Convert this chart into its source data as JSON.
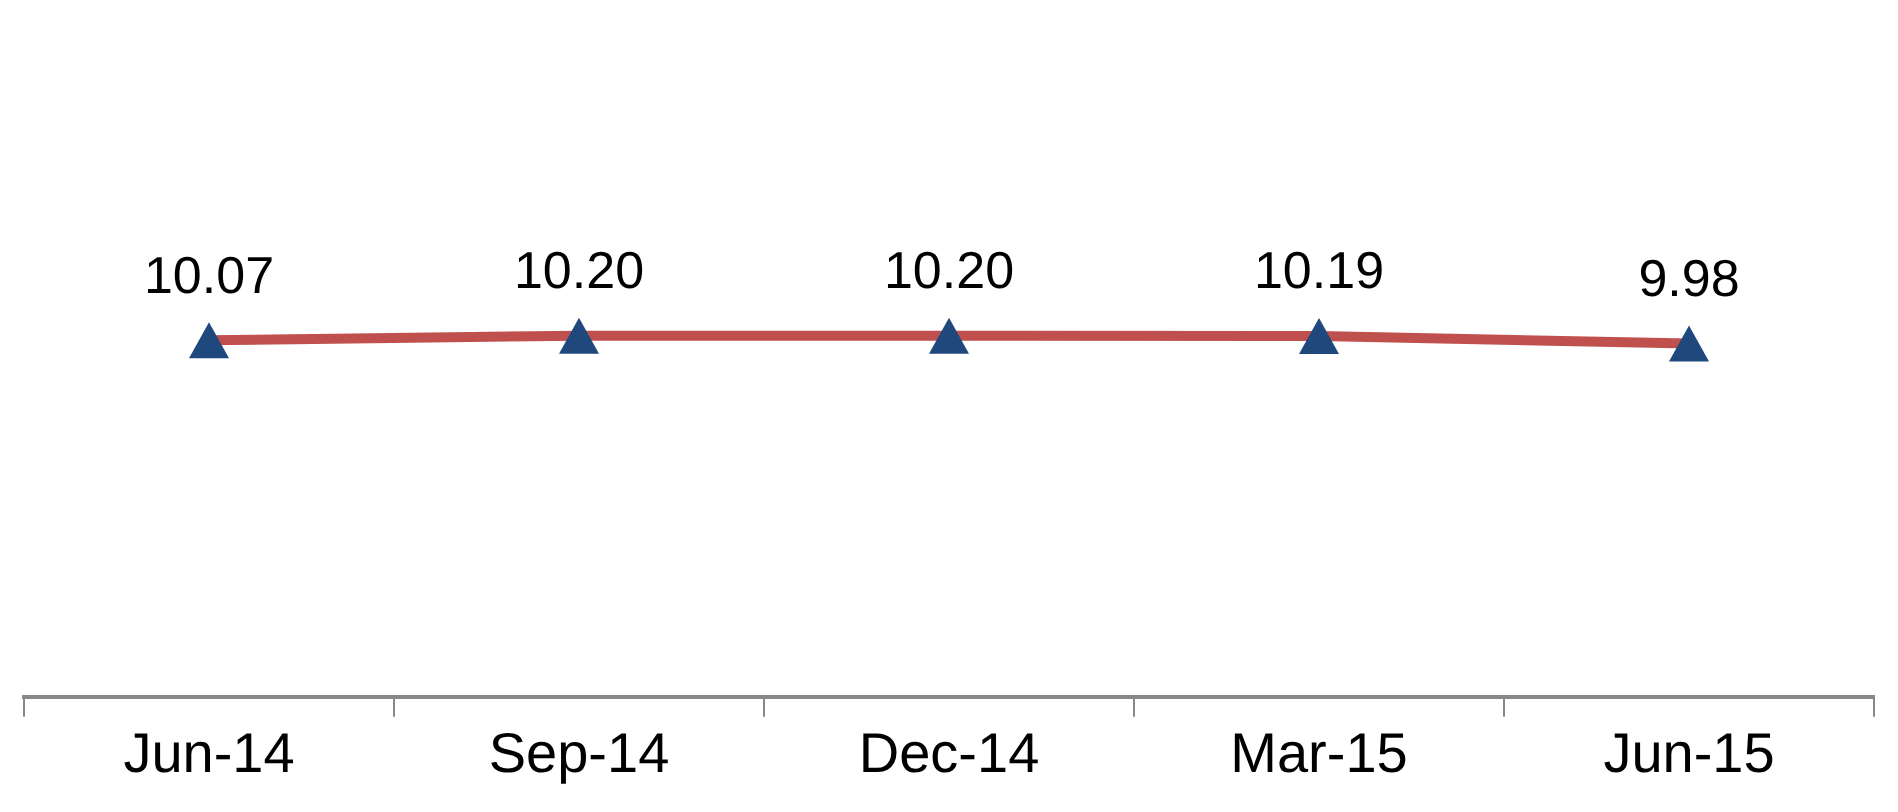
{
  "chart_data": {
    "type": "line",
    "categories": [
      "Jun-14",
      "Sep-14",
      "Dec-14",
      "Mar-15",
      "Jun-15"
    ],
    "series": [
      {
        "color": "#c0504d",
        "colors": [
          "#1f497d",
          "#1f497d",
          "#1f497d",
          "#1f497d",
          "#1f497d"
        ],
        "values": [
          10.07,
          10.2,
          10.2,
          10.19,
          9.98
        ],
        "value_labels": [
          "10.07",
          "10.20",
          "10.20",
          "10.19",
          "9.98"
        ]
      }
    ],
    "marker": "triangle",
    "line_style": "solid",
    "grid": false,
    "legend": false
  }
}
